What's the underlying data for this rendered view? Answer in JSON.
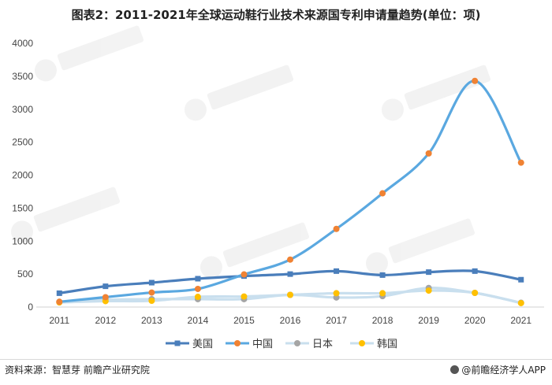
{
  "header": {
    "title": "图表2：2011-2021年全球运动鞋行业技术来源国专利申请量趋势(单位：项)"
  },
  "footer": {
    "source": "资料来源：智慧芽 前瞻产业研究院",
    "brand": "@前瞻经济学人APP"
  },
  "chart_data": {
    "type": "line",
    "title": "图表2：2011-2021年全球运动鞋行业技术来源国专利申请量趋势(单位：项)",
    "categories": [
      "2011",
      "2012",
      "2013",
      "2014",
      "2015",
      "2016",
      "2017",
      "2018",
      "2019",
      "2020",
      "2021"
    ],
    "ylim": [
      0,
      4000
    ],
    "yticks": [
      0,
      500,
      1000,
      1500,
      2000,
      2500,
      3000,
      3500,
      4000
    ],
    "grid": false,
    "legend": "bottom",
    "series": [
      {
        "name": "美国",
        "color": "#4a7ebb",
        "marker": "square",
        "values": [
          210,
          315,
          370,
          430,
          470,
          500,
          545,
          485,
          530,
          545,
          415
        ]
      },
      {
        "name": "中国",
        "color": "#f08233",
        "marker": "circle",
        "values": [
          80,
          150,
          220,
          275,
          495,
          720,
          1185,
          1725,
          2330,
          3430,
          2190
        ]
      },
      {
        "name": "日本",
        "color": "#a5a5a5",
        "marker": "circle",
        "values": [
          80,
          110,
          120,
          120,
          120,
          185,
          145,
          165,
          290,
          215,
          65
        ]
      },
      {
        "name": "韩国",
        "color": "#ffc000",
        "marker": "circle",
        "values": [
          70,
          90,
          95,
          155,
          160,
          185,
          210,
          210,
          250,
          215,
          60
        ]
      }
    ]
  }
}
